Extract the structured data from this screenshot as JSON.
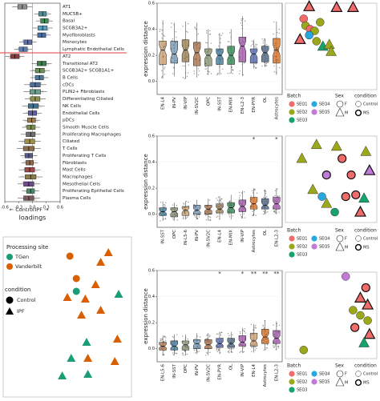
{
  "chart_data": [
    {
      "type": "boxplot",
      "panel": "A",
      "orientation": "horizontal",
      "xlabel": "loadings",
      "xticks": [
        "-0.6",
        "-0.3",
        "0.0",
        "0.3",
        "0.6"
      ],
      "xlim": [
        -0.6,
        0.6
      ],
      "annotations": [
        "Control",
        "IPF"
      ],
      "separator_after_index": 7,
      "categories": [
        "AT1",
        "MUC5B+",
        "Basal",
        "SCGB3A2+",
        "Myofibroblasts",
        "Monocytes",
        "Lymphatic Endothelial Cells",
        "AT2",
        "Transitional AT2",
        "SCGB3A2+ SCGB1A1+",
        "B Cells",
        "cDCs",
        "PLIN2+ Fibroblasts",
        "Differentiating Ciliated",
        "NK Cells",
        "Endothelial Cells",
        "pDCs",
        "Smooth Muscle Cells",
        "Proliferating Macrophages",
        "Ciliated",
        "T Cells",
        "Proliferating T Cells",
        "Fibroblasts",
        "Mast Cells",
        "Macrophages",
        "Mesothelial Cells",
        "Proliferating Epithelial Cells",
        "Plasma Cells"
      ],
      "medians": [
        -0.22,
        0.22,
        0.26,
        0.22,
        0.2,
        -0.1,
        -0.2,
        -0.38,
        0.2,
        0.16,
        0.15,
        0.06,
        0.06,
        0.06,
        0.02,
        0.0,
        -0.02,
        -0.03,
        -0.04,
        -0.06,
        -0.08,
        -0.08,
        -0.06,
        -0.06,
        -0.04,
        -0.08,
        -0.04,
        -0.08
      ],
      "colors": [
        "#8c8c8c",
        "#4f8f9a",
        "#3f8f5a",
        "#5a9fbf",
        "#4a6fa8",
        "#5e6fa8",
        "#5a7fb0",
        "#8e3a3a",
        "#3f7f4a",
        "#6e8f5a",
        "#4a7a9f",
        "#4f6f9a",
        "#6a9f8a",
        "#8f8f4a",
        "#3f6f8a",
        "#5f5f9f",
        "#9f7a4a",
        "#7a8f4a",
        "#6f6f6f",
        "#9f8f4a",
        "#8a6f4a",
        "#5a5a8a",
        "#8f6a4a",
        "#9f4a4a",
        "#8a7a4a",
        "#6a4a8a",
        "#4a8a6a",
        "#7a5a5a"
      ]
    },
    {
      "type": "scatter",
      "panel": "B",
      "legend": {
        "title1": "Processing site",
        "entries1": [
          {
            "label": "TGen",
            "color": "#1b9e77"
          },
          {
            "label": "Vanderbilt",
            "color": "#d95f02"
          }
        ],
        "title2": "condition",
        "entries2": [
          {
            "label": "Control",
            "shape": "circle"
          },
          {
            "label": "IPF",
            "shape": "triangle"
          }
        ]
      },
      "points": [
        {
          "x": 0.52,
          "y": 0.88,
          "site": "Vanderbilt",
          "cond": "Control"
        },
        {
          "x": 0.57,
          "y": 0.74,
          "site": "Vanderbilt",
          "cond": "Control"
        },
        {
          "x": 0.57,
          "y": 0.66,
          "site": "TGen",
          "cond": "Control"
        },
        {
          "x": 0.5,
          "y": 0.62,
          "site": "Vanderbilt",
          "cond": "IPF"
        },
        {
          "x": 0.76,
          "y": 0.84,
          "site": "Vanderbilt",
          "cond": "IPF"
        },
        {
          "x": 0.82,
          "y": 0.9,
          "site": "Vanderbilt",
          "cond": "IPF"
        },
        {
          "x": 0.72,
          "y": 0.7,
          "site": "Vanderbilt",
          "cond": "IPF"
        },
        {
          "x": 0.64,
          "y": 0.61,
          "site": "Vanderbilt",
          "cond": "IPF"
        },
        {
          "x": 0.76,
          "y": 0.54,
          "site": "Vanderbilt",
          "cond": "IPF"
        },
        {
          "x": 0.61,
          "y": 0.51,
          "site": "Vanderbilt",
          "cond": "IPF"
        },
        {
          "x": 0.9,
          "y": 0.64,
          "site": "TGen",
          "cond": "IPF"
        },
        {
          "x": 0.89,
          "y": 0.36,
          "site": "Vanderbilt",
          "cond": "IPF"
        },
        {
          "x": 0.87,
          "y": 0.22,
          "site": "Vanderbilt",
          "cond": "IPF"
        },
        {
          "x": 0.66,
          "y": 0.24,
          "site": "Vanderbilt",
          "cond": "IPF"
        },
        {
          "x": 0.65,
          "y": 0.34,
          "site": "TGen",
          "cond": "IPF"
        },
        {
          "x": 0.53,
          "y": 0.24,
          "site": "TGen",
          "cond": "IPF"
        },
        {
          "x": 0.46,
          "y": 0.13,
          "site": "TGen",
          "cond": "IPF"
        },
        {
          "x": 0.66,
          "y": 0.14,
          "site": "TGen",
          "cond": "IPF"
        }
      ]
    },
    {
      "type": "boxplot",
      "panel": "C1",
      "ylabel": "expression distance",
      "ylim": [
        -0.1,
        0.6
      ],
      "yticks": [
        "0.0",
        "0.2",
        "0.4",
        "0.6"
      ],
      "categories": [
        "EN-L4",
        "IN-PV",
        "IN-VIP",
        "IN-SV2C",
        "OPC",
        "IN-SST",
        "EN-MIX",
        "EN-L2-3",
        "EN-PYR",
        "OL",
        "Astrocytes"
      ],
      "values": [
        0.24,
        0.21,
        0.24,
        0.22,
        0.2,
        0.2,
        0.2,
        0.27,
        0.21,
        0.22,
        0.24
      ],
      "q1": [
        0.13,
        0.14,
        0.15,
        0.12,
        0.12,
        0.13,
        0.13,
        0.15,
        0.14,
        0.15,
        0.14
      ],
      "q3": [
        0.31,
        0.31,
        0.32,
        0.3,
        0.25,
        0.25,
        0.27,
        0.34,
        0.25,
        0.27,
        0.33
      ],
      "lower": [
        0.02,
        0.04,
        0.02,
        0.03,
        0.05,
        0.05,
        0.06,
        0.04,
        0.1,
        0.11,
        0.05
      ],
      "upper": [
        0.47,
        0.45,
        0.46,
        0.45,
        0.4,
        0.37,
        0.4,
        0.5,
        0.32,
        0.33,
        0.46
      ],
      "colors": [
        "#c9a276",
        "#7e9cb8",
        "#a0865c",
        "#b07a55",
        "#8c9a7a",
        "#4a7f9f",
        "#3c8c5a",
        "#a65fae",
        "#5a6fb0",
        "#556c88",
        "#d9772c"
      ],
      "significance": []
    },
    {
      "type": "boxplot",
      "panel": "C2",
      "ylabel": "expression distance",
      "ylim": [
        -0.1,
        0.6
      ],
      "yticks": [
        "0.0",
        "0.2",
        "0.4",
        "0.6"
      ],
      "categories": [
        "IN-SST",
        "OPC",
        "IN-L5-6",
        "IN-PV",
        "IN-SV2C",
        "EN-L4",
        "EN-MIX",
        "IN-VIP",
        "Astrocytes",
        "OL",
        "EN-L2-3"
      ],
      "values": [
        0.02,
        0.02,
        0.03,
        0.03,
        0.04,
        0.04,
        0.05,
        0.06,
        0.08,
        0.07,
        0.08
      ],
      "q1": [
        -0.01,
        -0.02,
        -0.01,
        0.0,
        0.0,
        0.01,
        0.01,
        0.02,
        0.04,
        0.04,
        0.04
      ],
      "q3": [
        0.05,
        0.05,
        0.06,
        0.07,
        0.07,
        0.08,
        0.09,
        0.11,
        0.13,
        0.12,
        0.13
      ],
      "lower": [
        -0.05,
        -0.05,
        -0.04,
        -0.04,
        -0.05,
        -0.04,
        -0.04,
        -0.03,
        -0.01,
        0.0,
        0.0
      ],
      "upper": [
        0.1,
        0.09,
        0.1,
        0.11,
        0.12,
        0.14,
        0.15,
        0.18,
        0.2,
        0.19,
        0.2
      ],
      "colors": [
        "#4a7f9f",
        "#8c9a7a",
        "#c9a276",
        "#7e9cb8",
        "#b07a55",
        "#a0865c",
        "#3c8c5a",
        "#a65fae",
        "#d9772c",
        "#556c88",
        "#a65fae"
      ],
      "significance": [
        "",
        "",
        "",
        "",
        "",
        "",
        "",
        "",
        "*",
        "",
        "*"
      ]
    },
    {
      "type": "boxplot",
      "panel": "C3",
      "ylabel": "expression distance",
      "ylim": [
        -0.1,
        0.6
      ],
      "yticks": [
        "0.0",
        "0.2",
        "0.4",
        "0.6"
      ],
      "categories": [
        "EN-L5-6",
        "IN-SST",
        "OPC",
        "IN-PV",
        "IN-SV2C",
        "EN-PYR",
        "OL",
        "IN-VIP",
        "EN-L4",
        "Astrocytes",
        "EN-L2-3"
      ],
      "values": [
        0.02,
        0.02,
        0.03,
        0.04,
        0.03,
        0.04,
        0.04,
        0.05,
        0.06,
        0.09,
        0.08
      ],
      "q1": [
        -0.01,
        -0.01,
        -0.01,
        0.0,
        0.0,
        0.01,
        0.01,
        0.02,
        0.02,
        0.04,
        0.04
      ],
      "q3": [
        0.05,
        0.06,
        0.06,
        0.07,
        0.07,
        0.08,
        0.08,
        0.1,
        0.12,
        0.15,
        0.14
      ],
      "lower": [
        -0.05,
        -0.05,
        -0.05,
        -0.04,
        -0.05,
        -0.04,
        -0.03,
        -0.03,
        -0.03,
        -0.01,
        -0.01
      ],
      "upper": [
        0.1,
        0.11,
        0.11,
        0.12,
        0.12,
        0.13,
        0.13,
        0.16,
        0.19,
        0.22,
        0.21
      ],
      "colors": [
        "#b07a55",
        "#4a7f9f",
        "#8c9a7a",
        "#7e9cb8",
        "#b07a55",
        "#5a6fb0",
        "#556c88",
        "#a65fae",
        "#c9a276",
        "#d9772c",
        "#a65fae"
      ],
      "significance": [
        "",
        "",
        "",
        "",
        "",
        "*",
        "",
        "*",
        "**",
        "**",
        "**"
      ]
    },
    {
      "type": "scatter",
      "panel": "D1",
      "legend": {
        "batch_title": "Batch",
        "batch": [
          {
            "label": "SEQ1",
            "color": "#f26b6b"
          },
          {
            "label": "SEQ2",
            "color": "#9ca81b"
          },
          {
            "label": "SEQ3",
            "color": "#16a36b"
          },
          {
            "label": "SEQ4",
            "color": "#26a9e0"
          },
          {
            "label": "SEQ5",
            "color": "#c27ad9"
          }
        ],
        "sex_title": "Sex",
        "sex": [
          {
            "label": "F",
            "shape": "circle"
          },
          {
            "label": "M",
            "shape": "triangle"
          }
        ],
        "cond_title": "condition",
        "cond": [
          {
            "label": "Control",
            "stroke": "thin"
          },
          {
            "label": "MS",
            "stroke": "thick"
          }
        ]
      },
      "points": [
        {
          "x": 0.26,
          "y": 0.96,
          "b": 0,
          "s": "tri",
          "ms": true
        },
        {
          "x": 0.56,
          "y": 0.95,
          "b": 0,
          "s": "tri",
          "ms": true
        },
        {
          "x": 0.74,
          "y": 0.95,
          "b": 0,
          "s": "tri",
          "ms": true
        },
        {
          "x": 0.2,
          "y": 0.82,
          "b": 0,
          "s": "circ",
          "ms": false
        },
        {
          "x": 0.22,
          "y": 0.74,
          "b": 1,
          "s": "circ",
          "ms": false
        },
        {
          "x": 0.27,
          "y": 0.7,
          "b": 0,
          "s": "circ",
          "ms": false
        },
        {
          "x": 0.32,
          "y": 0.68,
          "b": 1,
          "s": "circ",
          "ms": false
        },
        {
          "x": 0.38,
          "y": 0.78,
          "b": 1,
          "s": "circ",
          "ms": false
        },
        {
          "x": 0.34,
          "y": 0.56,
          "b": 1,
          "s": "circ",
          "ms": false
        },
        {
          "x": 0.41,
          "y": 0.5,
          "b": 2,
          "s": "tri",
          "ms": false
        },
        {
          "x": 0.48,
          "y": 0.52,
          "b": 1,
          "s": "tri",
          "ms": false
        },
        {
          "x": 0.5,
          "y": 0.44,
          "b": 1,
          "s": "tri",
          "ms": false
        },
        {
          "x": 0.26,
          "y": 0.63,
          "b": 3,
          "s": "circ",
          "ms": false
        },
        {
          "x": 0.16,
          "y": 0.58,
          "b": 0,
          "s": "tri",
          "ms": true
        }
      ]
    },
    {
      "type": "scatter",
      "panel": "D2",
      "points": [
        {
          "x": 0.34,
          "y": 0.9,
          "b": 1,
          "s": "tri",
          "ms": false
        },
        {
          "x": 0.56,
          "y": 0.88,
          "b": 1,
          "s": "tri",
          "ms": false
        },
        {
          "x": 0.18,
          "y": 0.74,
          "b": 1,
          "s": "tri",
          "ms": false
        },
        {
          "x": 0.62,
          "y": 0.74,
          "b": 0,
          "s": "circ",
          "ms": true
        },
        {
          "x": 0.88,
          "y": 0.82,
          "b": 1,
          "s": "tri",
          "ms": false
        },
        {
          "x": 0.92,
          "y": 0.6,
          "b": 4,
          "s": "tri",
          "ms": true
        },
        {
          "x": 0.72,
          "y": 0.55,
          "b": 0,
          "s": "circ",
          "ms": true
        },
        {
          "x": 0.45,
          "y": 0.55,
          "b": 4,
          "s": "circ",
          "ms": true
        },
        {
          "x": 0.3,
          "y": 0.38,
          "b": 1,
          "s": "tri",
          "ms": false
        },
        {
          "x": 0.45,
          "y": 0.22,
          "b": 1,
          "s": "tri",
          "ms": false
        },
        {
          "x": 0.66,
          "y": 0.3,
          "b": 0,
          "s": "circ",
          "ms": true
        },
        {
          "x": 0.77,
          "y": 0.32,
          "b": 0,
          "s": "circ",
          "ms": true
        },
        {
          "x": 0.82,
          "y": 0.12,
          "b": 0,
          "s": "tri",
          "ms": true
        },
        {
          "x": 0.86,
          "y": 0.28,
          "b": 2,
          "s": "tri",
          "ms": false
        },
        {
          "x": 0.54,
          "y": 0.12,
          "b": 2,
          "s": "circ",
          "ms": false
        },
        {
          "x": 0.4,
          "y": 0.3,
          "b": 3,
          "s": "circ",
          "ms": false
        }
      ]
    },
    {
      "type": "scatter",
      "panel": "D3",
      "points": [
        {
          "x": 0.66,
          "y": 0.95,
          "b": 4,
          "s": "circ",
          "ms": false
        },
        {
          "x": 0.88,
          "y": 0.82,
          "b": 0,
          "s": "circ",
          "ms": true
        },
        {
          "x": 0.82,
          "y": 0.7,
          "b": 0,
          "s": "tri",
          "ms": true
        },
        {
          "x": 0.9,
          "y": 0.62,
          "b": 0,
          "s": "tri",
          "ms": true
        },
        {
          "x": 0.74,
          "y": 0.56,
          "b": 1,
          "s": "circ",
          "ms": false
        },
        {
          "x": 0.82,
          "y": 0.5,
          "b": 1,
          "s": "circ",
          "ms": false
        },
        {
          "x": 0.9,
          "y": 0.44,
          "b": 1,
          "s": "circ",
          "ms": false
        },
        {
          "x": 0.76,
          "y": 0.36,
          "b": 0,
          "s": "circ",
          "ms": true
        },
        {
          "x": 0.92,
          "y": 0.28,
          "b": 0,
          "s": "tri",
          "ms": true
        },
        {
          "x": 0.86,
          "y": 0.18,
          "b": 2,
          "s": "tri",
          "ms": false
        },
        {
          "x": 0.2,
          "y": 0.1,
          "b": 1,
          "s": "circ",
          "ms": false
        }
      ]
    }
  ]
}
